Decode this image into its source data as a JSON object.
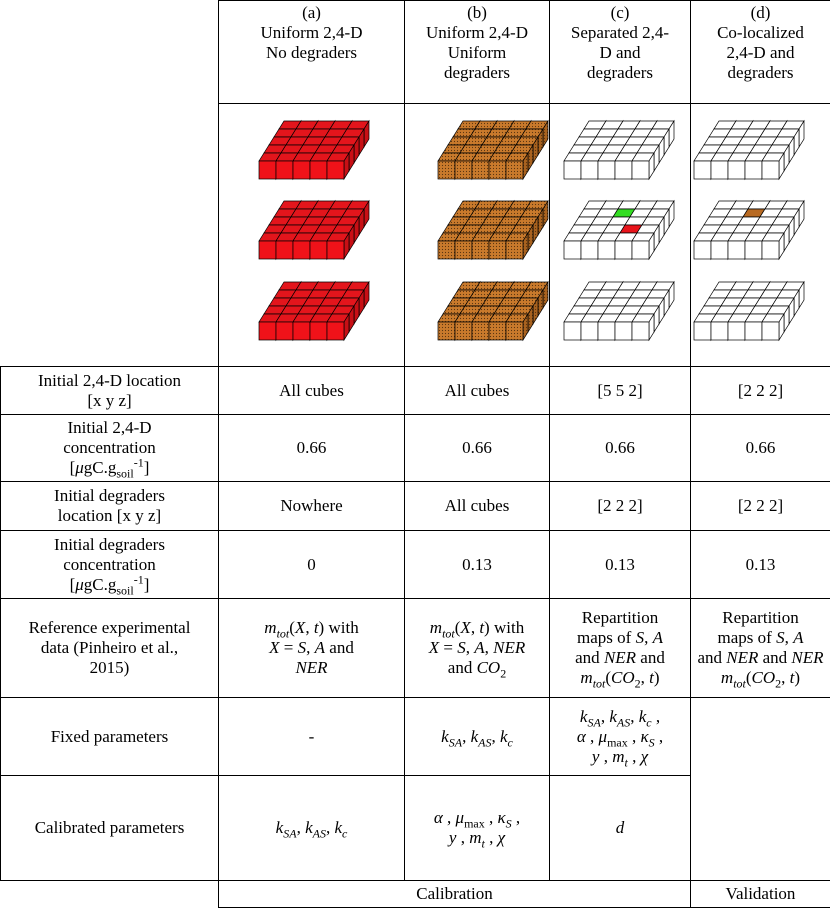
{
  "header": {
    "columns": [
      {
        "letter": "(a)",
        "title": [
          "Uniform 2,4-D",
          "No degraders"
        ]
      },
      {
        "letter": "(b)",
        "title": [
          "Uniform 2,4-D",
          "Uniform",
          "degraders"
        ]
      },
      {
        "letter": "(c)",
        "title": [
          "Separated 2,4-",
          "D and",
          "degraders"
        ]
      },
      {
        "letter": "(d)",
        "title": [
          "Co-localized",
          "2,4-D and",
          "degraders"
        ]
      }
    ]
  },
  "table": {
    "rows": [
      {
        "label": [
          "Initial 2,4-D location",
          "[x y z]"
        ],
        "cells": [
          "All cubes",
          "All cubes",
          "[5 5 2]",
          "[2 2 2]"
        ]
      },
      {
        "label": [
          "Initial 2,4-D",
          "concentration",
          [
            "[",
            "μ",
            "gC.g",
            "soil",
            "-1",
            "]"
          ]
        ],
        "cells": [
          "0.66",
          "0.66",
          "0.66",
          "0.66"
        ]
      },
      {
        "label": [
          "Initial degraders",
          "location [x y z]"
        ],
        "cells": [
          "Nowhere",
          "All cubes",
          "[2 2 2]",
          "[2 2 2]"
        ]
      },
      {
        "label": [
          "Initial degraders",
          "concentration",
          [
            "[",
            "μ",
            "gC.g",
            "soil",
            "-1",
            "]"
          ]
        ],
        "cells": [
          "0",
          "0.13",
          "0.13",
          "0.13"
        ]
      },
      {
        "label": [
          "Reference experimental",
          "data (Pinheiro et al.,",
          "2015)"
        ],
        "cells": [
          [
            [
              "m",
              "tot",
              "(",
              "X",
              ", ",
              "t",
              ")",
              " with"
            ],
            [
              "X",
              " = ",
              "S",
              ", ",
              "A",
              " and"
            ],
            [
              "NER"
            ]
          ],
          [
            [
              "m",
              "tot",
              "(",
              "X",
              ", ",
              "t",
              ")",
              " with"
            ],
            [
              "X",
              " = ",
              "S",
              ", ",
              "A",
              ", ",
              "NER"
            ],
            [
              "and ",
              "CO",
              "2"
            ]
          ],
          [
            "Repartition",
            [
              "maps of ",
              "S",
              ", ",
              "A"
            ],
            [
              "and ",
              "NER",
              " and"
            ],
            [
              "m",
              "tot",
              "(",
              "CO",
              "2",
              ", ",
              "t",
              ")"
            ]
          ],
          [
            "Repartition",
            [
              "maps of ",
              "S",
              ", ",
              "A"
            ],
            [
              "and ",
              "NER",
              " and ",
              "NER"
            ],
            [
              "m",
              "tot",
              "(",
              "CO",
              "2",
              ", ",
              "t",
              ")"
            ]
          ]
        ]
      },
      {
        "label": "Fixed parameters",
        "cells": [
          "-",
          [
            [
              "k",
              "SA",
              ", ",
              "k",
              "AS",
              ", ",
              "k",
              "c"
            ]
          ],
          [
            [
              "k",
              "SA",
              ", ",
              "k",
              "AS",
              ", ",
              "k",
              "c",
              " ,"
            ],
            [
              "α",
              " , ",
              "μ",
              "max",
              " , ",
              "κ",
              "S",
              " ,"
            ],
            [
              "y",
              " , ",
              "m",
              "t",
              " , ",
              "χ"
            ]
          ]
        ]
      },
      {
        "label": "Calibrated parameters",
        "cells": [
          [
            [
              "k",
              "SA",
              ", ",
              "k",
              "AS",
              ", ",
              "k",
              "c"
            ]
          ],
          [
            [
              "α",
              " , ",
              "μ",
              "max",
              " , ",
              "κ",
              "S",
              " ,"
            ],
            [
              "y",
              " , ",
              "m",
              "t",
              " , ",
              "χ"
            ]
          ],
          [
            [
              "d"
            ]
          ]
        ]
      }
    ],
    "footer": [
      "Calibration",
      "Validation"
    ]
  }
}
